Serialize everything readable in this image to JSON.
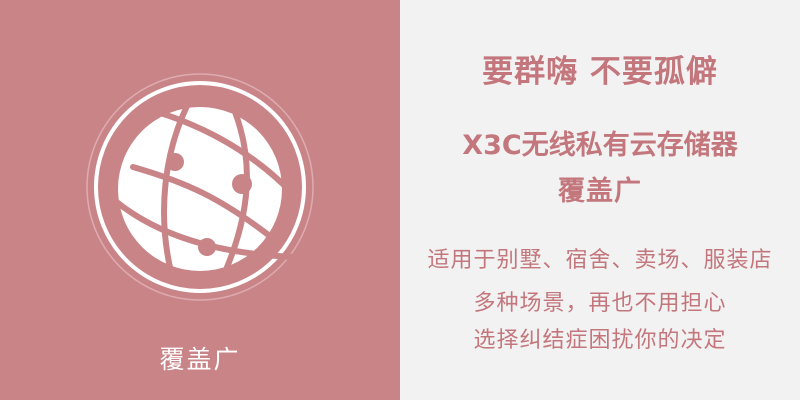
{
  "colors": {
    "left_background": "#c98488",
    "right_background": "#f2f2f2",
    "accent_text": "#c3777d",
    "icon_white": "#ffffff"
  },
  "left": {
    "icon": "globe-network-icon",
    "caption": "覆盖广"
  },
  "right": {
    "slogan": "要群嗨 不要孤僻",
    "product_name": "X3C无线私有云存储器",
    "feature": "覆盖广",
    "description_lines": [
      "适用于别墅、宿舍、卖场、服装店",
      "多种场景，再也不用担心",
      "选择纠结症困扰你的决定"
    ]
  }
}
